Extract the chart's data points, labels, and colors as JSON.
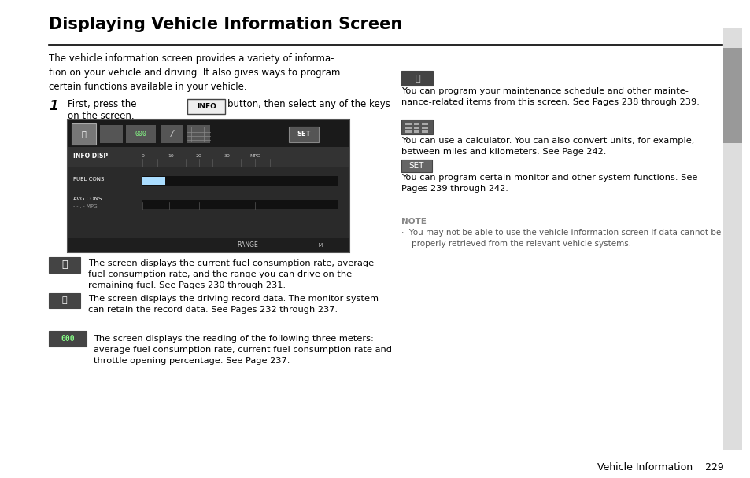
{
  "title": "Displaying Vehicle Information Screen",
  "bg_color": "#ffffff",
  "title_color": "#000000",
  "body_color": "#000000",
  "link_color": "#888888",
  "note_label_color": "#888888",
  "line_color": "#000000",
  "footer_text": "Vehicle Information    229",
  "intro_text": "The vehicle information screen provides a variety of informa-\ntion on your vehicle and driving. It also gives ways to program\ncertain functions available in your vehicle.",
  "step1_text": "First, press the",
  "step1_btn": "INFO",
  "icon1_desc_plain": "The screen displays the current fuel consumption rate, average\nfuel consumption rate, and the range you can drive on the\nremaining fuel. See Pages ",
  "icon1_page1": "230",
  "icon1_mid": " through ",
  "icon1_page2": "231",
  "icon1_end": ".",
  "icon2_desc_plain": "The screen displays the driving record data. The monitor system\ncan retain the record data. See Pages ",
  "icon2_page1": "232",
  "icon2_mid": " through ",
  "icon2_page2": "237",
  "icon2_end": ".",
  "icon3_desc_plain": "The screen displays the reading of the following three meters:\naverage fuel consumption rate, current fuel consumption rate and\nthrottle opening percentage. See Page ",
  "icon3_page1": "237",
  "icon3_end": ".",
  "right_icon1_desc": "You can program your maintenance schedule and other mainte-\nnance-related items from this screen. See Pages 238 through 239.",
  "right_icon2_desc": "You can use a calculator. You can also convert units, for example,\nbetween miles and kilometers. See Page 242.",
  "right_icon3_desc": "You can program certain monitor and other system functions. See\nPages 239 through 242.",
  "note_label": "NOTE",
  "note_line1": "·  You may not be able to use the vehicle information screen if data cannot be",
  "note_line2": "    properly retrieved from the relevant vehicle systems."
}
